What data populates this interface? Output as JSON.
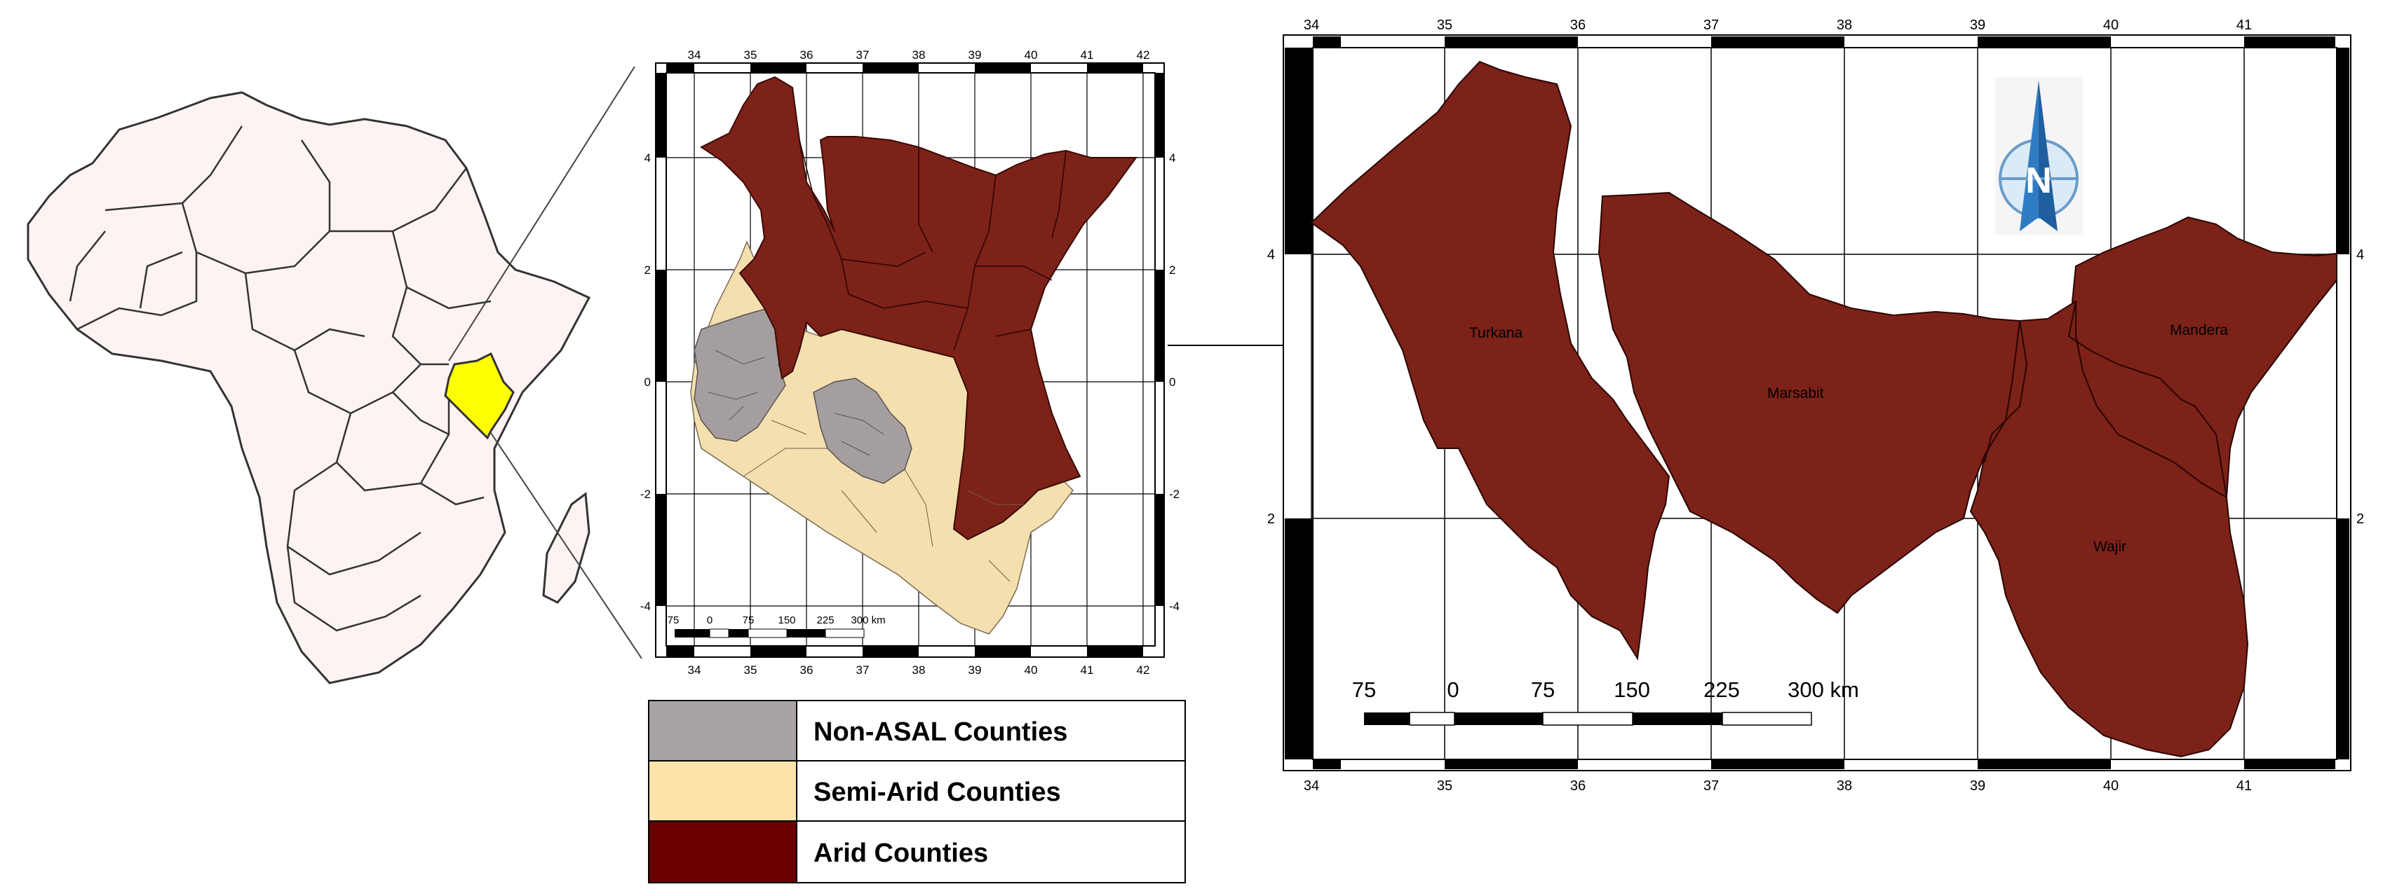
{
  "africa_map": {
    "highlight_color": "#ffff00",
    "land_color": "#fdf3f3"
  },
  "kenya_map": {
    "x_ticks": [
      "34",
      "35",
      "36",
      "37",
      "38",
      "39",
      "40",
      "41",
      "42"
    ],
    "y_ticks": [
      "4",
      "2",
      "0",
      "-2",
      "-4"
    ],
    "scale_labels": [
      "75",
      "0",
      "75",
      "150",
      "225",
      "300 km"
    ]
  },
  "detail_map": {
    "x_ticks": [
      "34",
      "35",
      "36",
      "37",
      "38",
      "39",
      "40",
      "41"
    ],
    "y_ticks": [
      "4",
      "2"
    ],
    "scale_labels": [
      "75",
      "0",
      "75",
      "150",
      "225",
      "300 km"
    ],
    "counties": [
      "Turkana",
      "Marsabit",
      "Mandera",
      "Wajir"
    ],
    "north_arrow_label": "N"
  },
  "legend": [
    {
      "label": "Non-ASAL Counties",
      "color": "#a9a4a3"
    },
    {
      "label": "Semi-Arid Counties",
      "color": "#fbe3aa"
    },
    {
      "label": "Arid Counties",
      "color": "#6a0000"
    }
  ],
  "colors": {
    "arid_fill": "#7c2218",
    "semi_arid_fill": "#f4dfae",
    "non_asal_fill": "#a59e9f"
  }
}
